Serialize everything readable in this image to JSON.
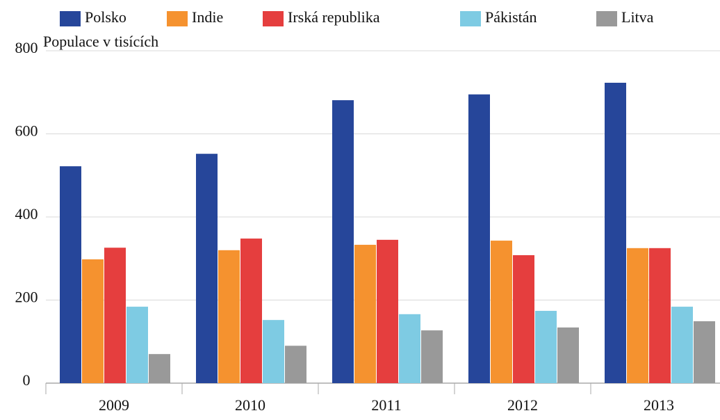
{
  "chart_data": {
    "type": "bar",
    "y_label": "Populace v tisících",
    "categories": [
      "2009",
      "2010",
      "2011",
      "2012",
      "2013"
    ],
    "series": [
      {
        "name": "Polsko",
        "color": "#26469a",
        "values": [
          522,
          552,
          681,
          695,
          723
        ]
      },
      {
        "name": "Indie",
        "color": "#f5922f",
        "values": [
          298,
          320,
          333,
          343,
          325
        ]
      },
      {
        "name": "Irská republika",
        "color": "#e53e3e",
        "values": [
          326,
          348,
          345,
          308,
          325
        ]
      },
      {
        "name": "Pákistán",
        "color": "#7ecbe3",
        "values": [
          184,
          152,
          166,
          174,
          184
        ]
      },
      {
        "name": "Litva",
        "color": "#999999",
        "values": [
          70,
          90,
          127,
          134,
          149
        ]
      }
    ],
    "ylim": [
      0,
      800
    ],
    "yticks": [
      0,
      200,
      400,
      600,
      800
    ],
    "grid": true,
    "legend": "top"
  }
}
